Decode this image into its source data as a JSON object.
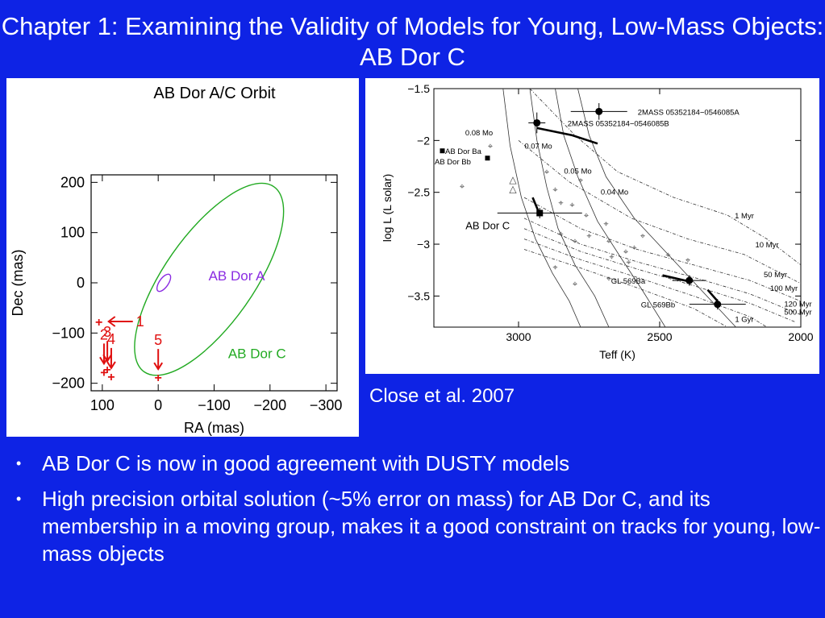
{
  "title": "Chapter 1: Examining the Validity of Models for Young, Low-Mass Objects: AB Dor C",
  "credit": "Close et al. 2007",
  "bullets": [
    "AB Dor C is now in good agreement with DUSTY models",
    "High precision orbital solution (~5% error on mass) for AB Dor C, and its membership in a moving group, makes it a good constraint on tracks for young, low-mass objects"
  ],
  "bullet_symbol": "•",
  "colors": {
    "background": "#0e23e5",
    "ab_dor_a": "#8a2be2",
    "ab_dor_c": "#22aa22",
    "epochs": "#e01010"
  },
  "chart_data": [
    {
      "type": "scatter",
      "title": "AB Dor A/C Orbit",
      "xlabel": "RA (mas)",
      "ylabel": "Dec (mas)",
      "xlim": [
        120,
        -320
      ],
      "ylim": [
        -215,
        215
      ],
      "xticks": [
        100,
        0,
        -100,
        -200,
        -300
      ],
      "yticks": [
        200,
        100,
        0,
        -100,
        -200
      ],
      "xtick_labels": [
        "100",
        "0",
        "−100",
        "−200",
        "−300"
      ],
      "ytick_labels": [
        "200",
        "100",
        "0",
        "−100",
        "−200"
      ],
      "series": [
        {
          "name": "AB Dor A",
          "kind": "ellipse",
          "center": [
            -10,
            0
          ],
          "semi_axes": [
            8,
            20
          ],
          "rotation": 35
        },
        {
          "name": "AB Dor C",
          "kind": "ellipse",
          "center": [
            -91,
            7
          ],
          "semi_axes": [
            80,
            225
          ],
          "rotation": 35
        },
        {
          "kind": "epochs",
          "points": [
            {
              "label": "1",
              "x": 106,
              "y": -77
            },
            {
              "label": "2",
              "x": 97,
              "y": -177
            },
            {
              "label": "3",
              "x": 91,
              "y": -172
            },
            {
              "label": "4",
              "x": 84,
              "y": -186
            },
            {
              "label": "5",
              "x": 0,
              "y": -188
            }
          ]
        }
      ],
      "arrow_directions": {
        "1": "left",
        "2": "down",
        "3": "down",
        "4": "down",
        "5": "down"
      }
    },
    {
      "type": "scatter",
      "xlabel": "Teff (K)",
      "ylabel": "log L (L solar)",
      "xlim": [
        3300,
        2000
      ],
      "ylim": [
        -3.8,
        -1.5
      ],
      "xticks": [
        3000,
        2500,
        2000
      ],
      "yticks": [
        -1.5,
        -2,
        -2.5,
        -3,
        -3.5
      ],
      "xtick_labels": [
        "3000",
        "2500",
        "2000"
      ],
      "ytick_labels": [
        "−1.5",
        "−2",
        "−2.5",
        "−3",
        "−3.5"
      ],
      "points": [
        {
          "label": "2MASS 05352184−0546085A",
          "x": 2715,
          "y": -1.72,
          "marker": "circle",
          "xerr": 100,
          "yerr": 0.08
        },
        {
          "label": "2MASS 05352184−0546085B",
          "x": 2935,
          "y": -1.83,
          "marker": "circle",
          "xerr": 30,
          "yerr": 0.1
        },
        {
          "label": "AB Dor C",
          "x": 2925,
          "y": -2.7,
          "marker": "square",
          "xerr": 150,
          "yerr": 0.05
        },
        {
          "label": "GL 569Ba",
          "x": 2395,
          "y": -3.35,
          "marker": "circle",
          "xerr": 60,
          "yerr": 0.05
        },
        {
          "label": "GL 569Bb",
          "x": 2295,
          "y": -3.58,
          "marker": "circle",
          "xerr": 100,
          "yerr": 0.05
        }
      ],
      "legend": [
        "AB Dor Ba",
        "AB Dor Bb"
      ],
      "legend_points": [
        {
          "label": "AB Dor Ba",
          "x": 3270,
          "y": -2.1
        },
        {
          "label": "AB Dor Bb",
          "x": 3110,
          "y": -2.17
        }
      ],
      "stars": [
        {
          "x": 3200,
          "y": -2.44
        },
        {
          "x": 3100,
          "y": -2.05
        },
        {
          "x": 2900,
          "y": -2.3
        },
        {
          "x": 2870,
          "y": -2.47
        },
        {
          "x": 2850,
          "y": -2.6
        },
        {
          "x": 2850,
          "y": -2.9
        },
        {
          "x": 2810,
          "y": -2.62
        },
        {
          "x": 2800,
          "y": -2.97
        },
        {
          "x": 2780,
          "y": -2.38
        },
        {
          "x": 2760,
          "y": -2.72
        },
        {
          "x": 2750,
          "y": -2.92
        },
        {
          "x": 2690,
          "y": -2.8
        },
        {
          "x": 2680,
          "y": -2.97
        },
        {
          "x": 2670,
          "y": -3.12
        },
        {
          "x": 2620,
          "y": -3.07
        },
        {
          "x": 2610,
          "y": -3.17
        },
        {
          "x": 2590,
          "y": -3.03
        },
        {
          "x": 2560,
          "y": -2.92
        },
        {
          "x": 2470,
          "y": -3.1
        },
        {
          "x": 2400,
          "y": -3.15
        },
        {
          "x": 2870,
          "y": -3.22
        },
        {
          "x": 2800,
          "y": -3.38
        },
        {
          "x": 2680,
          "y": -3.33
        }
      ],
      "triangles": [
        {
          "x": 3020,
          "y": -2.37
        },
        {
          "x": 3020,
          "y": -2.46
        }
      ],
      "track_labels": [
        "0.08 Mo",
        "0.07 Mo",
        "0.05 Mo",
        "0.04 Mo",
        "1 Myr",
        "10 Myr",
        "50 Myr",
        "100 Myr",
        "120 Myr",
        "500 Myr",
        "1 Gyr"
      ],
      "track_label_points": [
        {
          "text": "0.08 Mo",
          "x": 3140,
          "y": -1.95
        },
        {
          "text": "0.07 Mo",
          "x": 2930,
          "y": -2.08
        },
        {
          "text": "0.05 Mo",
          "x": 2790,
          "y": -2.32
        },
        {
          "text": "0.04 Mo",
          "x": 2660,
          "y": -2.52
        },
        {
          "text": "1 Myr",
          "x": 2200,
          "y": -2.75
        },
        {
          "text": "10 Myr",
          "x": 2120,
          "y": -3.03
        },
        {
          "text": "50 Myr",
          "x": 2090,
          "y": -3.32
        },
        {
          "text": "100 Myr",
          "x": 2060,
          "y": -3.45
        },
        {
          "text": "120 Myr",
          "x": 2010,
          "y": -3.6
        },
        {
          "text": "500 Myr",
          "x": 2010,
          "y": -3.68
        },
        {
          "text": "1 Gyr",
          "x": 2200,
          "y": -3.75
        }
      ],
      "mass_tracks": [
        [
          [
            3055,
            -1.5
          ],
          [
            3030,
            -2.05
          ],
          [
            2990,
            -2.55
          ],
          [
            2940,
            -2.95
          ],
          [
            2880,
            -3.28
          ],
          [
            2820,
            -3.55
          ],
          [
            2780,
            -3.8
          ]
        ],
        [
          [
            2960,
            -1.5
          ],
          [
            2935,
            -2.0
          ],
          [
            2900,
            -2.45
          ],
          [
            2860,
            -2.85
          ],
          [
            2800,
            -3.2
          ],
          [
            2730,
            -3.5
          ],
          [
            2680,
            -3.8
          ]
        ],
        [
          [
            2870,
            -1.5
          ],
          [
            2840,
            -1.95
          ],
          [
            2790,
            -2.35
          ],
          [
            2720,
            -2.78
          ],
          [
            2640,
            -3.12
          ],
          [
            2560,
            -3.45
          ],
          [
            2480,
            -3.8
          ]
        ],
        [
          [
            2790,
            -1.5
          ],
          [
            2750,
            -1.95
          ],
          [
            2690,
            -2.35
          ],
          [
            2590,
            -2.75
          ],
          [
            2470,
            -3.1
          ],
          [
            2350,
            -3.45
          ],
          [
            2230,
            -3.8
          ]
        ]
      ],
      "isochrones": [
        [
          [
            2960,
            -1.5
          ],
          [
            2800,
            -1.95
          ],
          [
            2650,
            -2.3
          ],
          [
            2450,
            -2.55
          ],
          [
            2260,
            -2.72
          ],
          [
            2120,
            -2.95
          ],
          [
            2000,
            -3.2
          ]
        ],
        [
          [
            3000,
            -2.0
          ],
          [
            2820,
            -2.4
          ],
          [
            2600,
            -2.75
          ],
          [
            2400,
            -2.95
          ],
          [
            2200,
            -3.1
          ],
          [
            2000,
            -3.38
          ]
        ],
        [
          [
            2980,
            -2.55
          ],
          [
            2780,
            -2.85
          ],
          [
            2580,
            -3.05
          ],
          [
            2380,
            -3.2
          ],
          [
            2180,
            -3.35
          ],
          [
            2000,
            -3.55
          ]
        ],
        [
          [
            2980,
            -2.75
          ],
          [
            2780,
            -3.0
          ],
          [
            2580,
            -3.17
          ],
          [
            2380,
            -3.32
          ],
          [
            2180,
            -3.48
          ],
          [
            2000,
            -3.68
          ]
        ],
        [
          [
            2980,
            -2.85
          ],
          [
            2780,
            -3.07
          ],
          [
            2580,
            -3.24
          ],
          [
            2380,
            -3.4
          ],
          [
            2180,
            -3.57
          ],
          [
            2020,
            -3.75
          ]
        ],
        [
          [
            2980,
            -2.95
          ],
          [
            2780,
            -3.15
          ],
          [
            2580,
            -3.32
          ],
          [
            2380,
            -3.5
          ],
          [
            2180,
            -3.7
          ],
          [
            2120,
            -3.8
          ]
        ],
        [
          [
            2980,
            -3.05
          ],
          [
            2780,
            -3.23
          ],
          [
            2580,
            -3.42
          ],
          [
            2380,
            -3.62
          ],
          [
            2260,
            -3.8
          ]
        ]
      ],
      "thick_tracks": [
        [
          [
            2935,
            -1.88
          ],
          [
            2810,
            -1.95
          ],
          [
            2720,
            -2.03
          ]
        ],
        [
          [
            2950,
            -2.55
          ],
          [
            2930,
            -2.68
          ]
        ],
        [
          [
            2490,
            -3.3
          ],
          [
            2395,
            -3.36
          ]
        ],
        [
          [
            2330,
            -3.44
          ],
          [
            2295,
            -3.55
          ]
        ]
      ]
    }
  ]
}
